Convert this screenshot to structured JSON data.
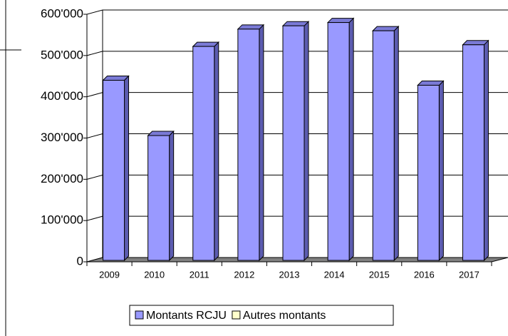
{
  "chart_data": {
    "type": "bar3d",
    "categories": [
      "2009",
      "2010",
      "2011",
      "2012",
      "2013",
      "2014",
      "2015",
      "2016",
      "2017"
    ],
    "series": [
      {
        "name": "Montants RCJU",
        "color": "#9999ff",
        "values": [
          440000,
          306000,
          522000,
          564000,
          572000,
          580000,
          560000,
          428000,
          526000
        ]
      },
      {
        "name": "Autres montants",
        "color": "#ffffcc",
        "values": [
          null,
          null,
          null,
          null,
          null,
          null,
          null,
          null,
          null
        ]
      }
    ],
    "ylim": [
      0,
      600000
    ],
    "yticks": [
      0,
      {
        "value": 100000,
        "label": "100'000"
      },
      {
        "value": 200000,
        "label": "200'000"
      },
      {
        "value": 300000,
        "label": "300'000"
      },
      {
        "value": 400000,
        "label": "400'000"
      },
      {
        "value": 500000,
        "label": "500'000"
      },
      {
        "value": 600000,
        "label": "600'000"
      }
    ],
    "grid": true,
    "legend": "bottom"
  }
}
